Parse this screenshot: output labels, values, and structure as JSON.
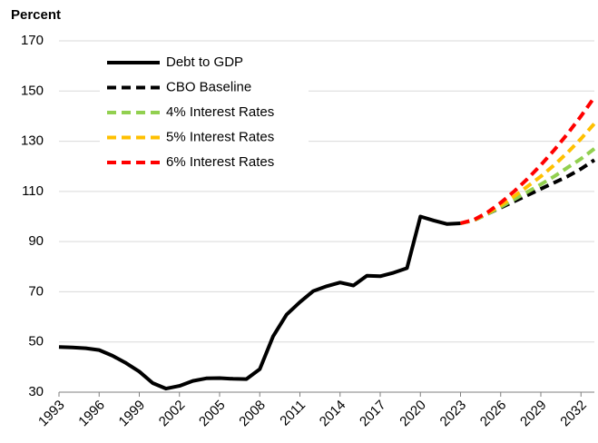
{
  "chart_data": {
    "type": "line",
    "ylabel": "Percent",
    "x": [
      1993,
      1994,
      1995,
      1996,
      1997,
      1998,
      1999,
      2000,
      2001,
      2002,
      2003,
      2004,
      2005,
      2006,
      2007,
      2008,
      2009,
      2010,
      2011,
      2012,
      2013,
      2014,
      2015,
      2016,
      2017,
      2018,
      2019,
      2020,
      2021,
      2022,
      2023,
      2024,
      2025,
      2026,
      2027,
      2028,
      2029,
      2030,
      2031,
      2032,
      2033
    ],
    "xlim": [
      1993,
      2033
    ],
    "xticks": [
      1993,
      1996,
      1999,
      2002,
      2005,
      2008,
      2011,
      2014,
      2017,
      2020,
      2023,
      2026,
      2029,
      2032
    ],
    "ylim": [
      30,
      170
    ],
    "yticks": [
      30,
      50,
      70,
      90,
      110,
      130,
      150,
      170
    ],
    "grid": true,
    "legend": "upper left",
    "series": [
      {
        "name": "Debt to GDP",
        "color": "#000000",
        "dashed": false,
        "values": [
          48,
          47.8,
          47.5,
          46.8,
          44.5,
          41.6,
          38.2,
          33.6,
          31.4,
          32.5,
          34.5,
          35.5,
          35.6,
          35.3,
          35.2,
          39.2,
          52.3,
          60.9,
          65.9,
          70.3,
          72.2,
          73.7,
          72.5,
          76.4,
          76.2,
          77.6,
          79.4,
          100,
          98.4,
          97,
          97.3,
          null,
          null,
          null,
          null,
          null,
          null,
          null,
          null,
          null,
          null
        ]
      },
      {
        "name": "CBO Baseline",
        "color": "#000000",
        "dashed": true,
        "values": [
          null,
          null,
          null,
          null,
          null,
          null,
          null,
          null,
          null,
          null,
          null,
          null,
          null,
          null,
          null,
          null,
          null,
          null,
          null,
          null,
          null,
          null,
          null,
          null,
          null,
          null,
          null,
          null,
          null,
          null,
          97.3,
          98.5,
          101,
          103.5,
          106,
          108.5,
          111,
          113.5,
          116,
          119,
          122.5
        ]
      },
      {
        "name": "4% Interest Rates",
        "color": "#92d050",
        "dashed": true,
        "values": [
          null,
          null,
          null,
          null,
          null,
          null,
          null,
          null,
          null,
          null,
          null,
          null,
          null,
          null,
          null,
          null,
          null,
          null,
          null,
          null,
          null,
          null,
          null,
          null,
          null,
          null,
          null,
          null,
          null,
          null,
          97.3,
          98.5,
          101,
          103.8,
          106.8,
          109.8,
          112.8,
          116,
          119.5,
          123,
          127
        ]
      },
      {
        "name": "5% Interest Rates",
        "color": "#ffc000",
        "dashed": true,
        "values": [
          null,
          null,
          null,
          null,
          null,
          null,
          null,
          null,
          null,
          null,
          null,
          null,
          null,
          null,
          null,
          null,
          null,
          null,
          null,
          null,
          null,
          null,
          null,
          null,
          null,
          null,
          null,
          null,
          null,
          null,
          97.3,
          98.6,
          101.3,
          104.5,
          108,
          112,
          116,
          120.5,
          125.5,
          131,
          137
        ]
      },
      {
        "name": "6% Interest Rates",
        "color": "#ff0000",
        "dashed": true,
        "values": [
          null,
          null,
          null,
          null,
          null,
          null,
          null,
          null,
          null,
          null,
          null,
          null,
          null,
          null,
          null,
          null,
          null,
          null,
          null,
          null,
          null,
          null,
          null,
          null,
          null,
          null,
          null,
          null,
          null,
          null,
          97.3,
          98.7,
          101.6,
          105.5,
          110,
          115,
          120.5,
          126.5,
          133,
          140,
          147.5
        ]
      }
    ]
  }
}
